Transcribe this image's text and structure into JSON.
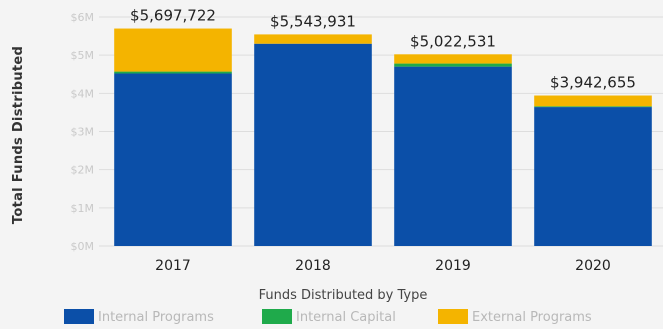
{
  "chart_data": {
    "type": "bar",
    "stacked": true,
    "title": "",
    "ylabel": "Total Funds Distributed",
    "xlabel": "Funds Distributed by Type",
    "categories": [
      "2017",
      "2018",
      "2019",
      "2020"
    ],
    "ylim": [
      0,
      6000000
    ],
    "yticks": [
      0,
      1000000,
      2000000,
      3000000,
      4000000,
      5000000,
      6000000
    ],
    "ytick_labels": [
      "$0M",
      "$1M",
      "$2M",
      "$3M",
      "$4M",
      "$5M",
      "$6M"
    ],
    "series": [
      {
        "name": "Internal Programs",
        "color": "#0b4fa8",
        "values": [
          4520000,
          5300000,
          4700000,
          3640000
        ]
      },
      {
        "name": "Internal Capital",
        "color": "#1faa4b",
        "values": [
          50000,
          0,
          80000,
          20000
        ]
      },
      {
        "name": "External Programs",
        "color": "#f4b400",
        "values": [
          1127722,
          243931,
          242531,
          282655
        ]
      }
    ],
    "totals": [
      5697722,
      5543931,
      5022531,
      3942655
    ],
    "total_labels": [
      "$5,697,722",
      "$5,543,931",
      "$5,022,531",
      "$3,942,655"
    ],
    "grid": true,
    "legend_position": "bottom"
  }
}
